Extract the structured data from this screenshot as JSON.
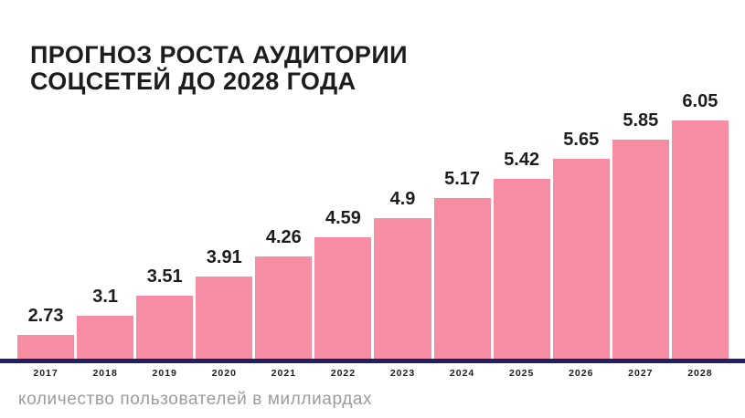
{
  "title": {
    "line1": "ПРОГНОЗ РОСТА АУДИТОРИИ",
    "line2": "СОЦСЕТЕЙ ДО 2028 ГОДА"
  },
  "footer": {
    "caption": "количество пользователей в миллиардах"
  },
  "chart_data": {
    "type": "bar",
    "title": "ПРОГНОЗ РОСТА АУДИТОРИИ СОЦСЕТЕЙ ДО 2028 ГОДА",
    "categories": [
      "2017",
      "2018",
      "2019",
      "2020",
      "2021",
      "2022",
      "2023",
      "2024",
      "2025",
      "2026",
      "2027",
      "2028"
    ],
    "values": [
      2.73,
      3.1,
      3.51,
      3.91,
      4.26,
      4.59,
      4.9,
      5.17,
      5.42,
      5.65,
      5.85,
      6.05
    ],
    "xlabel": "",
    "ylabel": "количество пользователей в миллиардах",
    "value_labels_shown": true,
    "layout_hints": {
      "grid": false,
      "legend": false,
      "y_axis_shown": false,
      "value_label_position": "above-bar",
      "bar_height_mapping": "equal-step-per-category"
    },
    "colors": {
      "bar": "#F78DA2",
      "axis_line": "#1E2264",
      "text": "#1D1D1B",
      "caption": "#9C9C9C",
      "background": "#FFFFFF"
    }
  }
}
